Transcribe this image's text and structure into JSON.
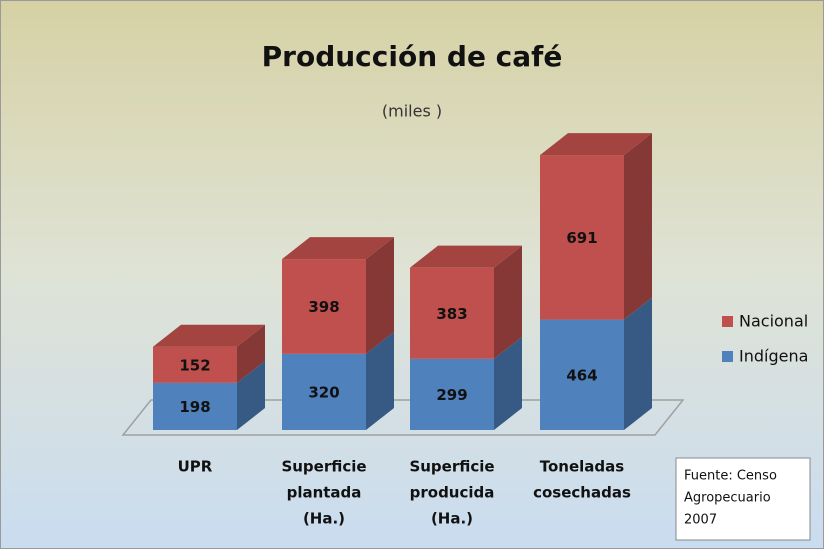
{
  "chart_data": {
    "type": "bar3d_stacked",
    "title": "Producción de café",
    "subtitle": "(miles )",
    "categories": [
      [
        "UPR"
      ],
      [
        "Superficie",
        "plantada",
        "(Ha.)"
      ],
      [
        "Superficie",
        "producida",
        "(Ha.)"
      ],
      [
        "Toneladas",
        "cosechadas"
      ]
    ],
    "series": [
      {
        "name": "Indígena",
        "color": "#4f81bd",
        "values": [
          198,
          320,
          299,
          464
        ]
      },
      {
        "name": "Nacional",
        "color": "#c0504d",
        "values": [
          152,
          398,
          383,
          691
        ]
      }
    ],
    "note": [
      "Fuente: Censo",
      "Agropecuario",
      "2007"
    ]
  }
}
